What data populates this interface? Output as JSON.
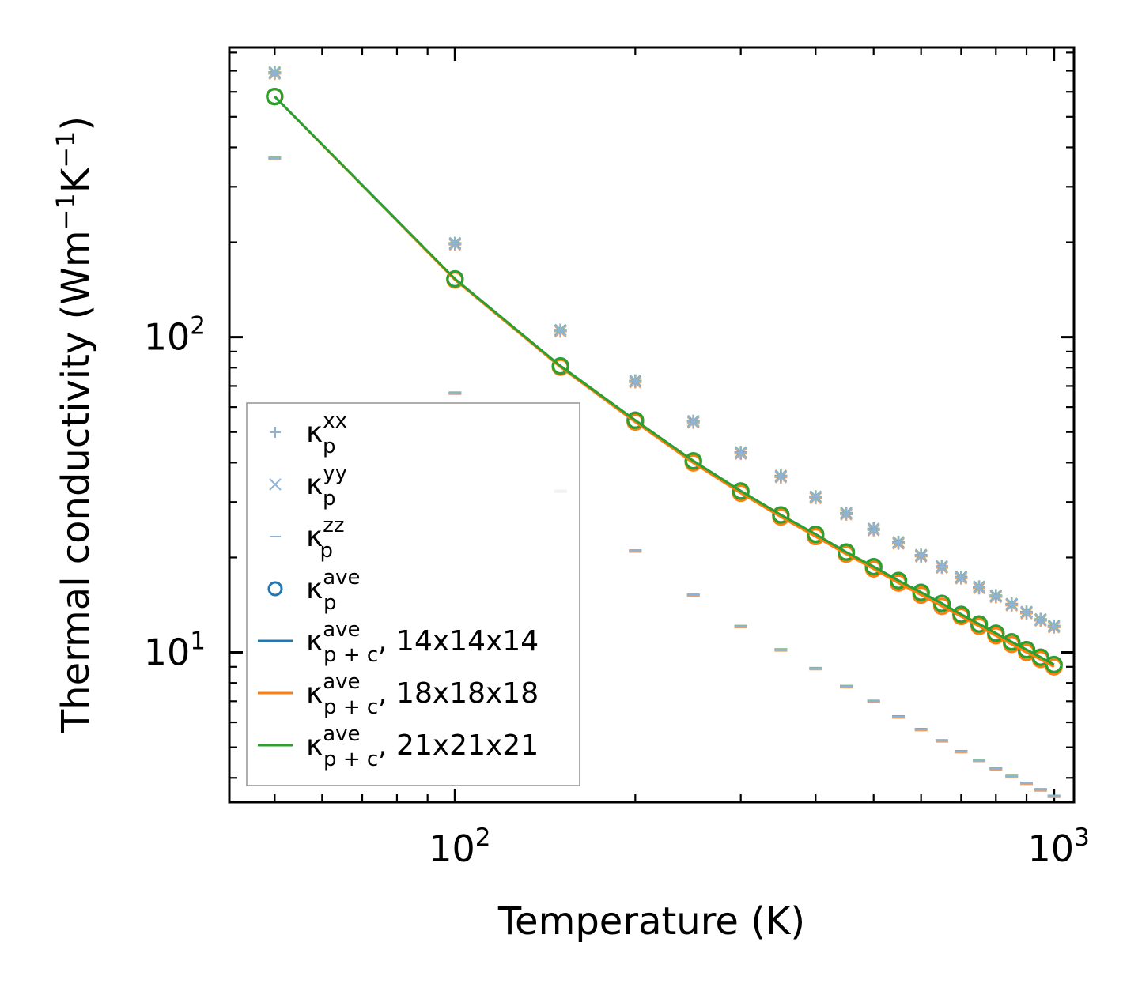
{
  "chart_data": {
    "type": "line",
    "scale": {
      "x": "log",
      "y": "log"
    },
    "xlabel": "Temperature (K)",
    "ylabel": {
      "base": "Thermal conductivity (Wm",
      "exp1": "−1",
      "mid": "K",
      "exp2": "−1",
      "end": ")"
    },
    "xlim": [
      42,
      1080
    ],
    "ylim": [
      3.35,
      830
    ],
    "x_major_ticks": [
      {
        "value": 100,
        "base": "10",
        "exp": "2"
      },
      {
        "value": 1000,
        "base": "10",
        "exp": "3"
      }
    ],
    "y_major_ticks": [
      {
        "value": 10,
        "base": "10",
        "exp": "1"
      },
      {
        "value": 100,
        "base": "10",
        "exp": "2"
      }
    ],
    "temperatures": [
      50,
      100,
      150,
      200,
      250,
      300,
      350,
      400,
      450,
      500,
      550,
      600,
      650,
      700,
      750,
      800,
      850,
      900,
      950,
      1000
    ],
    "scatter_series": [
      {
        "name": "κp xx",
        "sym": "κ",
        "sup": "xx",
        "sub": "p",
        "marker": "plus",
        "color": "#8fb3d6",
        "values": [
          690,
          198,
          105,
          72.5,
          54,
          43,
          36.2,
          31.1,
          27.6,
          24.6,
          22.3,
          20.3,
          18.7,
          17.3,
          16.1,
          15.1,
          14.2,
          13.4,
          12.7,
          12.1
        ]
      },
      {
        "name": "κp yy",
        "sym": "κ",
        "sup": "yy",
        "sub": "p",
        "marker": "x",
        "color": "#8fb3d6",
        "values": [
          690,
          198,
          105,
          72.5,
          54,
          43,
          36.2,
          31.1,
          27.6,
          24.6,
          22.3,
          20.3,
          18.7,
          17.3,
          16.1,
          15.1,
          14.2,
          13.4,
          12.7,
          12.1
        ]
      },
      {
        "name": "κp zz",
        "sym": "κ",
        "sup": "zz",
        "sub": "p",
        "marker": "hline",
        "color": "#8fb3d6",
        "values": [
          370,
          66.5,
          32.5,
          21,
          15.2,
          12.1,
          10.2,
          8.9,
          7.8,
          7.0,
          6.25,
          5.7,
          5.25,
          4.85,
          4.55,
          4.28,
          4.05,
          3.85,
          3.67,
          3.5
        ]
      },
      {
        "name": "κp ave",
        "sym": "κ",
        "sup": "ave",
        "sub": "p",
        "marker": "circle",
        "color": "#1f77b4",
        "values": [
          580,
          153,
          81,
          54.5,
          40.5,
          32.5,
          27.3,
          23.7,
          20.8,
          18.7,
          16.9,
          15.5,
          14.3,
          13.2,
          12.3,
          11.5,
          10.8,
          10.2,
          9.65,
          9.15
        ]
      }
    ],
    "line_series": [
      {
        "name": "κp+c ave, 14x14x14",
        "sym": "κ",
        "sup": "ave",
        "sub": "p + c",
        "suffix": ", 14x14x14",
        "color": "#1f77b4",
        "values": [
          580,
          153,
          81,
          54.5,
          40.5,
          32.5,
          27.3,
          23.7,
          20.8,
          18.7,
          16.9,
          15.5,
          14.3,
          13.2,
          12.3,
          11.5,
          10.8,
          10.2,
          9.65,
          9.15
        ]
      },
      {
        "name": "κp+c ave, 18x18x18",
        "sym": "κ",
        "sup": "ave",
        "sub": "p + c",
        "suffix": ", 18x18x18",
        "color": "#ff7f0e",
        "values": [
          580,
          152,
          80.3,
          53.8,
          39.9,
          32.0,
          26.9,
          23.3,
          20.5,
          18.4,
          16.6,
          15.2,
          14.0,
          13.0,
          12.1,
          11.3,
          10.6,
          10.0,
          9.5,
          9.0
        ]
      },
      {
        "name": "κp+c ave, 21x21x21",
        "sym": "κ",
        "sup": "ave",
        "sub": "p + c",
        "suffix": ", 21x21x21",
        "color": "#2ca02c",
        "values": [
          580,
          153,
          81,
          54.5,
          40.5,
          32.5,
          27.3,
          23.7,
          20.8,
          18.7,
          16.9,
          15.5,
          14.3,
          13.2,
          12.3,
          11.5,
          10.8,
          10.2,
          9.65,
          9.15
        ]
      }
    ],
    "faded_overlay_colors": [
      "#e8a06a",
      "#7fb37f"
    ],
    "legend": {
      "position": "lower-left"
    },
    "grid": false
  }
}
